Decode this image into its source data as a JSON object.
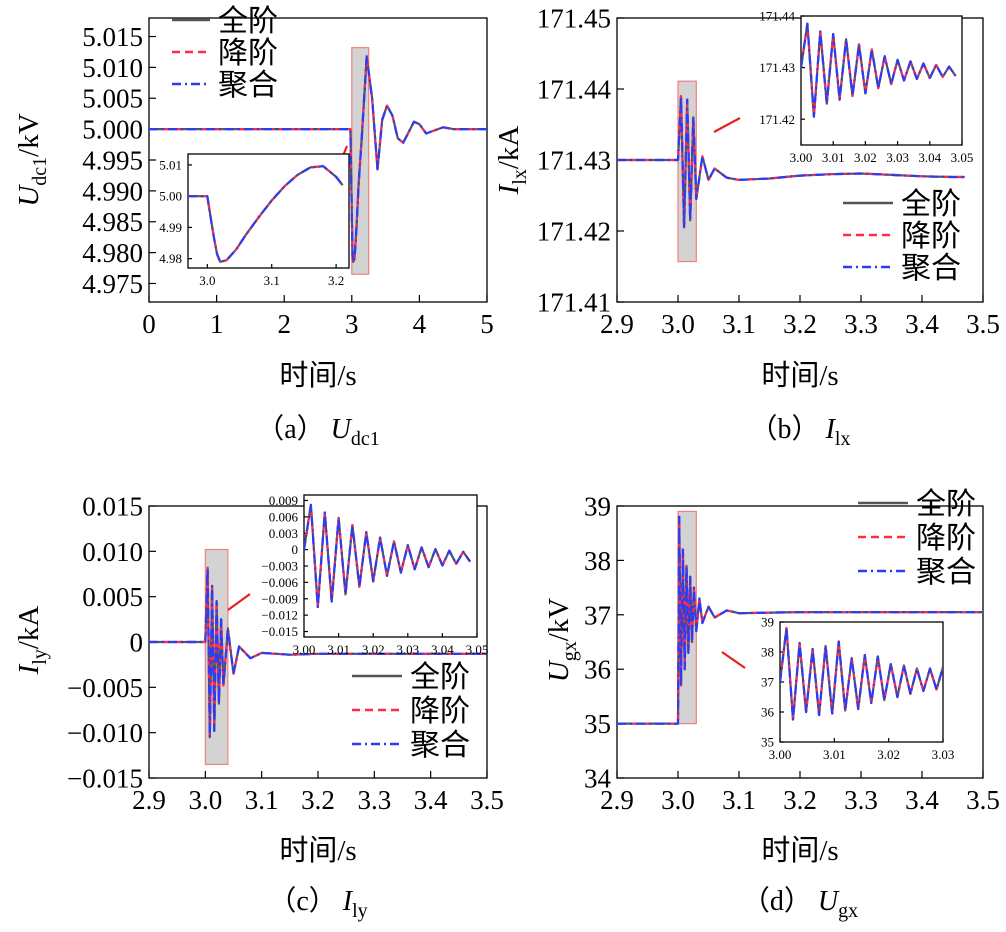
{
  "colors": {
    "full": "#555555",
    "reduced": "#ff2a45",
    "aggregated": "#2a3cf5",
    "zoom_box_fill": "#d3d3d3",
    "zoom_box_edge": "#f08080",
    "pointer": "#e8201c"
  },
  "legend": [
    "全阶",
    "降阶",
    "聚合"
  ],
  "chart_data": [
    {
      "type": "line",
      "caption": "（a）",
      "caption_var": "U",
      "caption_sub": "dc1",
      "ylabel_main": "U",
      "ylabel_sub": "dc1",
      "ylabel_unit": "/kV",
      "xlabel": "时间/s",
      "xlim": [
        0,
        5
      ],
      "ylim": [
        4.972,
        5.018
      ],
      "xticks": [
        "0",
        "1",
        "2",
        "3",
        "4",
        "5"
      ],
      "yticks": [
        "4.975",
        "4.980",
        "4.985",
        "4.990",
        "4.995",
        "5.000",
        "5.005",
        "5.010",
        "5.015"
      ],
      "zoom_window": {
        "x": [
          3.0,
          3.25
        ],
        "y": [
          4.9765,
          5.0132
        ]
      },
      "series": [
        {
          "name": "全阶",
          "x": [
            0,
            2.98,
            3.01,
            3.02,
            3.04,
            3.07,
            3.1,
            3.15,
            3.22,
            3.3,
            3.38,
            3.45,
            3.52,
            3.6,
            3.68,
            3.76,
            3.84,
            3.92,
            4.0,
            4.1,
            4.2,
            4.35,
            4.5,
            5.0
          ],
          "y": [
            5.0,
            5.0,
            4.9795,
            4.9785,
            4.979,
            4.984,
            4.991,
            4.999,
            5.0118,
            5.005,
            4.9935,
            5.0015,
            5.0038,
            5.0022,
            4.9985,
            4.9978,
            4.9995,
            5.0012,
            5.0008,
            4.9993,
            4.9997,
            5.0003,
            5.0,
            5.0
          ]
        }
      ],
      "inset": {
        "xlim": [
          2.97,
          3.22
        ],
        "ylim": [
          4.977,
          5.0135
        ],
        "xticks": [
          "3.0",
          "3.1",
          "3.2"
        ],
        "yticks": [
          "4.98",
          "4.99",
          "5.00",
          "5.01"
        ],
        "series": [
          {
            "name": "全阶",
            "x": [
              2.97,
              3.0,
              3.005,
              3.01,
              3.015,
              3.02,
              3.03,
              3.045,
              3.06,
              3.08,
              3.1,
              3.12,
              3.14,
              3.16,
              3.18,
              3.2,
              3.21
            ],
            "y": [
              5.0,
              5.0,
              4.9935,
              4.987,
              4.9815,
              4.979,
              4.9795,
              4.983,
              4.9877,
              4.9933,
              4.9986,
              5.0032,
              5.0068,
              5.0092,
              5.0096,
              5.0062,
              5.0035
            ]
          }
        ]
      }
    },
    {
      "type": "line",
      "caption": "（b）",
      "caption_var": "I",
      "caption_sub": "lx",
      "ylabel_main": "I",
      "ylabel_sub": "lx",
      "ylabel_unit": "/kA",
      "xlabel": "时间/s",
      "xlim": [
        2.9,
        3.5
      ],
      "ylim": [
        171.41,
        171.45
      ],
      "xticks": [
        "2.9",
        "3.0",
        "3.1",
        "3.2",
        "3.3",
        "3.4",
        "3.5"
      ],
      "yticks": [
        "171.41",
        "171.42",
        "171.43",
        "171.44",
        "171.45"
      ],
      "zoom_window": {
        "x": [
          3.0,
          3.03
        ],
        "y": [
          171.4157,
          171.4411
        ]
      },
      "series": [
        {
          "name": "全阶",
          "x": [
            2.9,
            3.0,
            3.005,
            3.01,
            3.015,
            3.02,
            3.025,
            3.03,
            3.04,
            3.05,
            3.06,
            3.08,
            3.1,
            3.15,
            3.2,
            3.25,
            3.3,
            3.35,
            3.4,
            3.45,
            3.47
          ],
          "y": [
            171.43,
            171.43,
            171.439,
            171.4205,
            171.4385,
            171.4215,
            171.436,
            171.4245,
            171.4305,
            171.4272,
            171.4288,
            171.4275,
            171.4272,
            171.4274,
            171.4278,
            171.428,
            171.4281,
            171.4279,
            171.4277,
            171.4276,
            171.4276
          ]
        }
      ],
      "inset": {
        "xlim": [
          3.0,
          3.05
        ],
        "ylim": [
          171.415,
          171.44
        ],
        "xticks": [
          "3.00",
          "3.01",
          "3.02",
          "3.03",
          "3.04",
          "3.05"
        ],
        "yticks": [
          "171.42",
          "171.43",
          "171.44"
        ],
        "series": [
          {
            "name": "全阶",
            "x": [
              3.0,
              3.002,
              3.004,
              3.006,
              3.008,
              3.01,
              3.012,
              3.014,
              3.016,
              3.018,
              3.02,
              3.022,
              3.024,
              3.026,
              3.028,
              3.03,
              3.032,
              3.034,
              3.036,
              3.038,
              3.04,
              3.042,
              3.044,
              3.046,
              3.048
            ],
            "y": [
              171.43,
              171.4385,
              171.4205,
              171.437,
              171.423,
              171.4365,
              171.4238,
              171.4355,
              171.4245,
              171.4345,
              171.425,
              171.4335,
              171.426,
              171.4322,
              171.4268,
              171.4315,
              171.4275,
              171.4312,
              171.4278,
              171.4308,
              171.428,
              171.4305,
              171.4282,
              171.4302,
              171.4284
            ]
          }
        ]
      }
    },
    {
      "type": "line",
      "caption": "（c）",
      "caption_var": "I",
      "caption_sub": "ly",
      "ylabel_main": "I",
      "ylabel_sub": "ly",
      "ylabel_unit": "/kA",
      "xlabel": "时间/s",
      "xlim": [
        2.9,
        3.5
      ],
      "ylim": [
        -0.015,
        0.015
      ],
      "xticks": [
        "2.9",
        "3.0",
        "3.1",
        "3.2",
        "3.3",
        "3.4",
        "3.5"
      ],
      "yticks": [
        "−0.015",
        "−0.010",
        "−0.005",
        "0",
        "0.005",
        "0.010",
        "0.015"
      ],
      "zoom_window": {
        "x": [
          3.0,
          3.04
        ],
        "y": [
          -0.0135,
          0.0102
        ]
      },
      "series": [
        {
          "name": "全阶",
          "x": [
            2.9,
            3.0,
            3.004,
            3.008,
            3.012,
            3.016,
            3.02,
            3.024,
            3.028,
            3.032,
            3.04,
            3.05,
            3.06,
            3.08,
            3.1,
            3.15,
            3.2,
            3.3,
            3.4,
            3.5
          ],
          "y": [
            0,
            0,
            0.0082,
            -0.0105,
            0.0062,
            -0.0098,
            0.0045,
            -0.0068,
            0.0025,
            -0.0048,
            0.0015,
            -0.0035,
            -0.0005,
            -0.0018,
            -0.0012,
            -0.0014,
            -0.0013,
            -0.0013,
            -0.0013,
            -0.0013
          ]
        }
      ],
      "inset": {
        "xlim": [
          3.0,
          3.05
        ],
        "ylim": [
          -0.016,
          0.01
        ],
        "xticks": [
          "3.00",
          "3.01",
          "3.02",
          "3.03",
          "3.04",
          "3.05"
        ],
        "yticks": [
          "−0.015",
          "−0.012",
          "−0.009",
          "−0.006",
          "−0.003",
          "0",
          "0.003",
          "0.006",
          "0.009"
        ],
        "series": [
          {
            "name": "全阶",
            "x": [
              3.0,
              3.002,
              3.004,
              3.006,
              3.008,
              3.01,
              3.012,
              3.014,
              3.016,
              3.018,
              3.02,
              3.022,
              3.024,
              3.026,
              3.028,
              3.03,
              3.032,
              3.034,
              3.036,
              3.038,
              3.04,
              3.042,
              3.044,
              3.046,
              3.048
            ],
            "y": [
              0,
              0.0082,
              -0.0105,
              0.0068,
              -0.0095,
              0.0058,
              -0.0082,
              0.0045,
              -0.0068,
              0.0032,
              -0.0058,
              0.0022,
              -0.0048,
              0.0015,
              -0.0042,
              0.0008,
              -0.0036,
              0.0004,
              -0.0032,
              0.0001,
              -0.0029,
              -0.0002,
              -0.0026,
              -0.0004,
              -0.0022
            ]
          }
        ]
      }
    },
    {
      "type": "line",
      "caption": "（d）",
      "caption_var": "U",
      "caption_sub": "gx",
      "ylabel_main": "U",
      "ylabel_sub": "gx",
      "ylabel_unit": "/kV",
      "xlabel": "时间/s",
      "xlim": [
        2.9,
        3.5
      ],
      "ylim": [
        34,
        39
      ],
      "xticks": [
        "2.9",
        "3.0",
        "3.1",
        "3.2",
        "3.3",
        "3.4",
        "3.5"
      ],
      "yticks": [
        "34",
        "35",
        "36",
        "37",
        "38",
        "39"
      ],
      "zoom_window": {
        "x": [
          3.0,
          3.03
        ],
        "y": [
          35.0,
          38.9
        ]
      },
      "series": [
        {
          "name": "全阶",
          "x": [
            2.9,
            3.0,
            3.002,
            3.005,
            3.008,
            3.011,
            3.014,
            3.017,
            3.02,
            3.023,
            3.026,
            3.03,
            3.035,
            3.04,
            3.05,
            3.06,
            3.08,
            3.1,
            3.2,
            3.3,
            3.4,
            3.5
          ],
          "y": [
            35.0,
            35.0,
            38.8,
            35.7,
            38.2,
            36.0,
            37.9,
            36.3,
            37.7,
            36.5,
            37.5,
            36.7,
            37.3,
            36.85,
            37.15,
            36.95,
            37.08,
            37.03,
            37.05,
            37.05,
            37.05,
            37.05
          ]
        }
      ],
      "inset": {
        "xlim": [
          3.0,
          3.03
        ],
        "ylim": [
          35.0,
          39.0
        ],
        "xticks": [
          "3.00",
          "3.01",
          "3.02",
          "3.03"
        ],
        "yticks": [
          "35",
          "36",
          "37",
          "38",
          "39"
        ],
        "series": [
          {
            "name": "全阶",
            "x": [
              3.0,
              3.0012,
              3.0024,
              3.0036,
              3.0048,
              3.006,
              3.0072,
              3.0084,
              3.0096,
              3.0108,
              3.012,
              3.0132,
              3.0144,
              3.0156,
              3.0168,
              3.018,
              3.0192,
              3.0204,
              3.0216,
              3.0228,
              3.024,
              3.0252,
              3.0264,
              3.0276,
              3.0288,
              3.03
            ],
            "y": [
              37.0,
              38.8,
              35.75,
              38.3,
              36.0,
              38.1,
              35.9,
              38.2,
              35.95,
              38.35,
              36.05,
              37.8,
              36.1,
              37.9,
              36.3,
              37.85,
              36.4,
              37.6,
              36.5,
              37.55,
              36.6,
              37.45,
              36.7,
              37.45,
              36.75,
              37.5
            ]
          }
        ]
      }
    }
  ]
}
